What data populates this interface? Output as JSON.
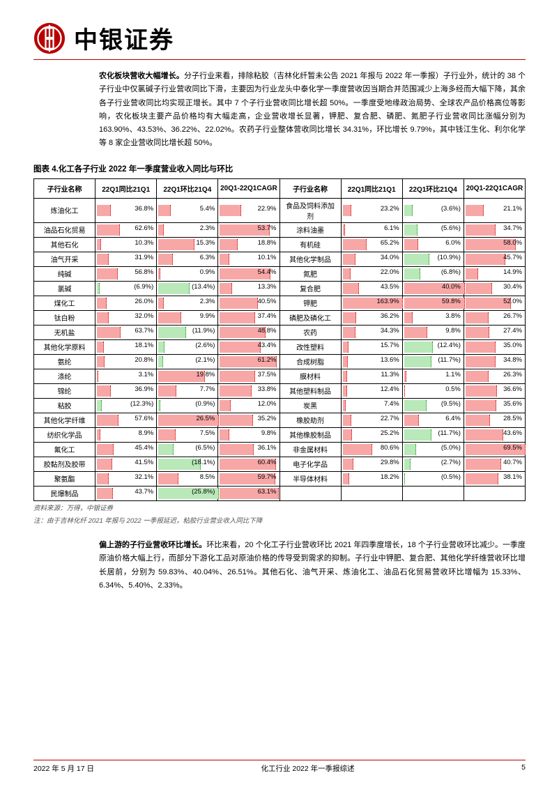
{
  "brand": "中银证券",
  "logo_outer": "#b80000",
  "logo_inner": "#ffffff",
  "para1": {
    "lead": "农化板块营收大幅增长。",
    "body": "分子行业来看，排除粘胶（吉林化纤暂未公告 2021 年报与 2022 年一季报）子行业外，统计的 38 个子行业中仅氯碱子行业营收同比下滑，主要因为行业龙头中泰化学一季度营收因当期合并范围减少上海多经而大幅下降，其余各子行业营收同比均实现正增长。其中 7 个子行业营收同比增长超 50%。一季度受地缘政治局势、全球农产品价格高位等影响，农化板块主要产品价格均有大幅走高，企业营收增长显著，钾肥、复合肥、磷肥、氮肥子行业营收同比涨幅分别为 163.90%、43.53%、36.22%、22.02%。农药子行业整体营收同比增长 34.31%，环比增长 9.79%，其中钱江生化、利尔化学等 8 家企业营收同比增长超 50%。"
  },
  "fig_title": "图表 4.化工各子行业 2022 年一季度营业收入同比与环比",
  "headers": [
    "子行业名称",
    "22Q1同比21Q1",
    "22Q1环比21Q4",
    "20Q1-22Q1CAGR",
    "子行业名称",
    "22Q1同比21Q1",
    "22Q1环比21Q4",
    "20Q1-22Q1CAGR"
  ],
  "col_scale": [
    165,
    26,
    65,
    165,
    26,
    70
  ],
  "rows": [
    [
      "炼油化工",
      "36.8%",
      "5.4%",
      "22.9%",
      "食品及饲料添加剂",
      "23.2%",
      "(3.6%)",
      "21.1%"
    ],
    [
      "油品石化贸易",
      "62.6%",
      "2.3%",
      "53.7%",
      "涂料油墨",
      "6.1%",
      "(5.6%)",
      "34.7%"
    ],
    [
      "其他石化",
      "10.3%",
      "15.3%",
      "18.8%",
      "有机硅",
      "65.2%",
      "6.0%",
      "58.0%"
    ],
    [
      "油气开采",
      "31.9%",
      "6.3%",
      "10.1%",
      "其他化学制品",
      "34.0%",
      "(10.9%)",
      "45.7%"
    ],
    [
      "纯碱",
      "56.8%",
      "0.9%",
      "54.4%",
      "氮肥",
      "22.0%",
      "(6.8%)",
      "14.9%"
    ],
    [
      "氯碱",
      "(6.9%)",
      "(13.4%)",
      "13.3%",
      "复合肥",
      "43.5%",
      "40.0%",
      "30.4%"
    ],
    [
      "煤化工",
      "26.0%",
      "2.3%",
      "40.5%",
      "钾肥",
      "163.9%",
      "59.8%",
      "52.0%"
    ],
    [
      "钛白粉",
      "32.0%",
      "9.9%",
      "37.4%",
      "磷肥及磷化工",
      "36.2%",
      "3.8%",
      "26.7%"
    ],
    [
      "无机盐",
      "63.7%",
      "(11.9%)",
      "48.8%",
      "农药",
      "34.3%",
      "9.8%",
      "27.4%"
    ],
    [
      "其他化学原料",
      "18.1%",
      "(2.6%)",
      "43.4%",
      "改性塑料",
      "15.7%",
      "(12.4%)",
      "35.0%"
    ],
    [
      "氨纶",
      "20.8%",
      "(2.1%)",
      "61.2%",
      "合成树脂",
      "13.6%",
      "(11.7%)",
      "34.8%"
    ],
    [
      "涤纶",
      "3.1%",
      "19.8%",
      "37.5%",
      "膜材料",
      "11.3%",
      "1.1%",
      "26.3%"
    ],
    [
      "锦纶",
      "36.9%",
      "7.7%",
      "33.8%",
      "其他塑料制品",
      "12.4%",
      "0.5%",
      "36.6%"
    ],
    [
      "粘胶",
      "(12.3%)",
      "(0.9%)",
      "12.0%",
      "炭黑",
      "7.4%",
      "(9.5%)",
      "35.6%"
    ],
    [
      "其他化学纤维",
      "57.6%",
      "26.5%",
      "35.2%",
      "橡胶助剂",
      "22.7%",
      "6.4%",
      "28.5%"
    ],
    [
      "纺织化学品",
      "8.9%",
      "7.5%",
      "9.8%",
      "其他橡胶制品",
      "25.2%",
      "(11.7%)",
      "43.6%"
    ],
    [
      "氟化工",
      "45.4%",
      "(6.5%)",
      "36.1%",
      "非金属材料",
      "80.6%",
      "(5.0%)",
      "69.5%"
    ],
    [
      "胶黏剂及胶带",
      "41.5%",
      "(18.1%)",
      "60.4%",
      "电子化学品",
      "29.8%",
      "(2.7%)",
      "40.7%"
    ],
    [
      "聚氨酯",
      "32.1%",
      "8.5%",
      "59.7%",
      "半导体材料",
      "18.2%",
      "(0.5%)",
      "38.1%"
    ],
    [
      "民爆制品",
      "43.7%",
      "(25.8%)",
      "63.1%",
      "",
      "",
      "",
      ""
    ]
  ],
  "source1": "资料来源：万得，中银证券",
  "source2": "注：由于吉林化纤 2021 年报与 2022 一季报延迟，粘胶行业营业收入同比下降",
  "para2": {
    "lead": "偏上游的子行业营收环比增长。",
    "body": "环比来看，20 个化工子行业营收环比 2021 年四季度增长，18 个子行业营收环比减少。一季度原油价格大幅上行，而部分下游化工品对原油价格的传导受到需求的抑制。子行业中钾肥、复合肥、其他化学纤维营收环比增长居前，分别为 59.83%、40.04%、26.51%。其他石化、油气开采、炼油化工、油品石化贸易营收环比增幅为 15.33%、6.34%、5.40%、2.33%。"
  },
  "footer": {
    "date": "2022 年 5 月 17 日",
    "center": "化工行业 2022 年一季报综述",
    "page": "5"
  }
}
